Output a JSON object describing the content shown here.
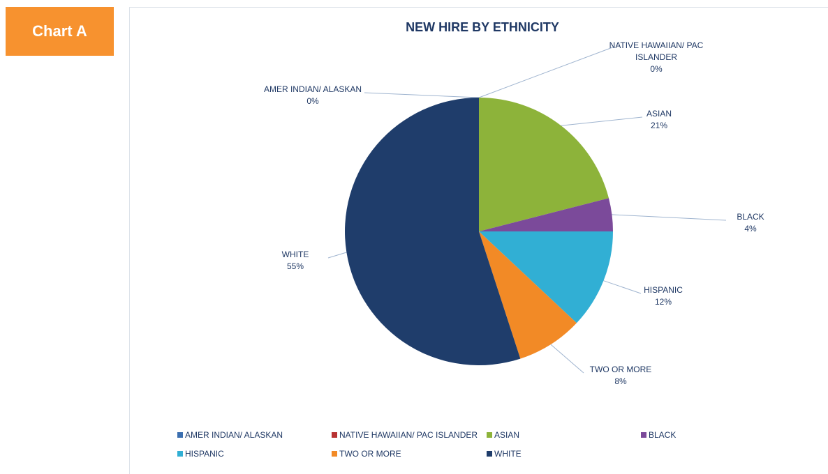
{
  "badge": "Chart A",
  "chart_data": {
    "type": "pie",
    "title": "NEW HIRE BY ETHNICITY",
    "categories": [
      "AMER INDIAN/ ALASKAN",
      "NATIVE HAWAIIAN/ PAC ISLANDER",
      "ASIAN",
      "BLACK",
      "HISPANIC",
      "TWO OR MORE",
      "WHITE"
    ],
    "values": [
      0,
      0,
      21,
      4,
      12,
      8,
      55
    ],
    "value_labels": [
      "0%",
      "0%",
      "21%",
      "4%",
      "12%",
      "8%",
      "55%"
    ],
    "colors": [
      "#3b6fb0",
      "#b83232",
      "#8db33a",
      "#7b4a9a",
      "#31afd4",
      "#f28a26",
      "#1f3d6b"
    ]
  }
}
